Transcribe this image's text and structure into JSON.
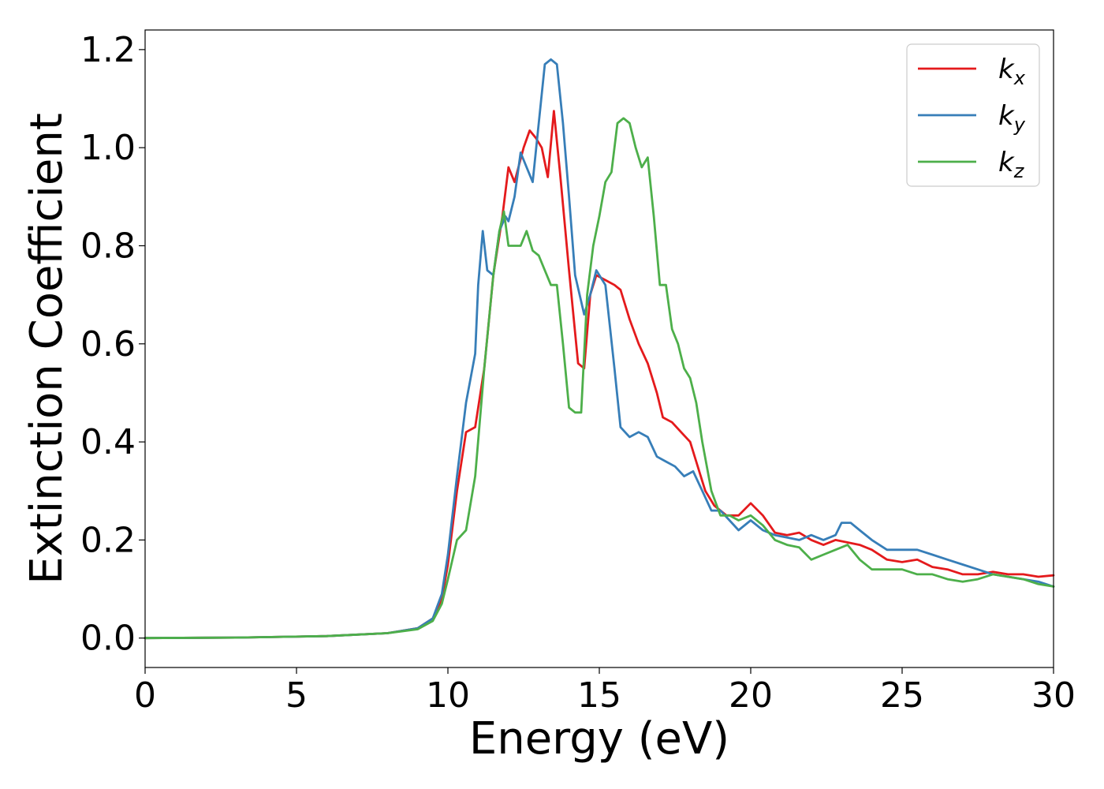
{
  "chart_data": {
    "type": "line",
    "title": "",
    "xlabel": "Energy (eV)",
    "ylabel": "Extinction Coefficient",
    "xlim": [
      0,
      30
    ],
    "ylim": [
      -0.06,
      1.24
    ],
    "xticks": [
      0,
      5,
      10,
      15,
      20,
      25,
      30
    ],
    "xtick_labels": [
      "0",
      "5",
      "10",
      "15",
      "20",
      "25",
      "30"
    ],
    "yticks": [
      0.0,
      0.2,
      0.4,
      0.6,
      0.8,
      1.0,
      1.2
    ],
    "ytick_labels": [
      "0.0",
      "0.2",
      "0.4",
      "0.6",
      "0.8",
      "1.0",
      "1.2"
    ],
    "grid": false,
    "legend_position": "top-right",
    "series": [
      {
        "name": "kx",
        "label_base": "k",
        "label_sub": "x",
        "color": "#e41a1c",
        "x": [
          0,
          3,
          6,
          8,
          9,
          9.5,
          9.8,
          10.0,
          10.3,
          10.6,
          10.9,
          11.2,
          11.5,
          11.8,
          12.0,
          12.2,
          12.5,
          12.7,
          12.9,
          13.1,
          13.3,
          13.5,
          13.7,
          14.0,
          14.3,
          14.5,
          14.7,
          14.9,
          15.2,
          15.5,
          15.7,
          16.0,
          16.3,
          16.6,
          16.9,
          17.1,
          17.4,
          17.7,
          18.0,
          18.2,
          18.5,
          18.8,
          19.2,
          19.6,
          20.0,
          20.4,
          20.8,
          21.2,
          21.6,
          22.0,
          22.4,
          22.8,
          23.2,
          23.6,
          24.0,
          24.5,
          25.0,
          25.5,
          26.0,
          26.5,
          27.0,
          27.5,
          28.0,
          28.5,
          29.0,
          29.5,
          30.0
        ],
        "y": [
          0.0,
          0.001,
          0.004,
          0.01,
          0.02,
          0.04,
          0.08,
          0.15,
          0.3,
          0.42,
          0.43,
          0.55,
          0.74,
          0.86,
          0.96,
          0.93,
          1.0,
          1.035,
          1.02,
          1.0,
          0.94,
          1.075,
          0.95,
          0.75,
          0.56,
          0.55,
          0.7,
          0.74,
          0.73,
          0.72,
          0.71,
          0.65,
          0.6,
          0.56,
          0.5,
          0.45,
          0.44,
          0.42,
          0.4,
          0.36,
          0.3,
          0.27,
          0.25,
          0.25,
          0.275,
          0.25,
          0.215,
          0.21,
          0.215,
          0.2,
          0.19,
          0.2,
          0.195,
          0.19,
          0.18,
          0.16,
          0.155,
          0.16,
          0.145,
          0.14,
          0.13,
          0.13,
          0.135,
          0.13,
          0.13,
          0.125,
          0.128
        ]
      },
      {
        "name": "ky",
        "label_base": "k",
        "label_sub": "y",
        "color": "#377eb8",
        "x": [
          0,
          3,
          6,
          8,
          9,
          9.5,
          9.8,
          10.0,
          10.3,
          10.6,
          10.9,
          11.0,
          11.15,
          11.3,
          11.5,
          11.7,
          11.9,
          12.0,
          12.2,
          12.4,
          12.6,
          12.8,
          13.0,
          13.2,
          13.4,
          13.6,
          13.8,
          14.0,
          14.2,
          14.5,
          14.7,
          14.9,
          15.2,
          15.5,
          15.7,
          16.0,
          16.3,
          16.6,
          16.9,
          17.2,
          17.5,
          17.8,
          18.1,
          18.4,
          18.7,
          19.0,
          19.3,
          19.6,
          20.0,
          20.4,
          20.8,
          21.2,
          21.6,
          22.0,
          22.4,
          22.8,
          23.0,
          23.3,
          23.6,
          24.0,
          24.5,
          25.0,
          25.5,
          26.0,
          26.5,
          27.0,
          27.5,
          28.0,
          28.5,
          29.0,
          29.5,
          30.0
        ],
        "y": [
          0.0,
          0.001,
          0.004,
          0.01,
          0.02,
          0.04,
          0.09,
          0.17,
          0.33,
          0.48,
          0.58,
          0.72,
          0.83,
          0.75,
          0.74,
          0.83,
          0.86,
          0.85,
          0.9,
          0.99,
          0.96,
          0.93,
          1.05,
          1.17,
          1.18,
          1.17,
          1.05,
          0.9,
          0.74,
          0.66,
          0.7,
          0.75,
          0.72,
          0.55,
          0.43,
          0.41,
          0.42,
          0.41,
          0.37,
          0.36,
          0.35,
          0.33,
          0.34,
          0.3,
          0.26,
          0.26,
          0.24,
          0.22,
          0.24,
          0.22,
          0.21,
          0.205,
          0.2,
          0.21,
          0.2,
          0.21,
          0.235,
          0.235,
          0.22,
          0.2,
          0.18,
          0.18,
          0.18,
          0.17,
          0.16,
          0.15,
          0.14,
          0.13,
          0.125,
          0.12,
          0.115,
          0.105
        ]
      },
      {
        "name": "kz",
        "label_base": "k",
        "label_sub": "z",
        "color": "#4daf4a",
        "x": [
          0,
          3,
          6,
          8,
          9,
          9.5,
          9.8,
          10.0,
          10.3,
          10.6,
          10.9,
          11.2,
          11.5,
          11.7,
          11.85,
          12.0,
          12.2,
          12.4,
          12.6,
          12.8,
          13.0,
          13.2,
          13.4,
          13.6,
          13.8,
          14.0,
          14.2,
          14.4,
          14.6,
          14.8,
          15.0,
          15.2,
          15.4,
          15.6,
          15.8,
          16.0,
          16.2,
          16.4,
          16.6,
          16.8,
          17.0,
          17.2,
          17.4,
          17.6,
          17.8,
          18.0,
          18.2,
          18.4,
          18.7,
          19.0,
          19.3,
          19.6,
          20.0,
          20.4,
          20.8,
          21.2,
          21.6,
          22.0,
          22.4,
          22.8,
          23.2,
          23.6,
          24.0,
          24.5,
          25.0,
          25.5,
          26.0,
          26.5,
          27.0,
          27.5,
          28.0,
          28.5,
          29.0,
          29.5,
          30.0
        ],
        "y": [
          0.0,
          0.001,
          0.004,
          0.01,
          0.018,
          0.035,
          0.07,
          0.12,
          0.2,
          0.22,
          0.33,
          0.55,
          0.74,
          0.83,
          0.87,
          0.8,
          0.8,
          0.8,
          0.83,
          0.79,
          0.78,
          0.75,
          0.72,
          0.72,
          0.6,
          0.47,
          0.46,
          0.46,
          0.7,
          0.8,
          0.86,
          0.93,
          0.95,
          1.05,
          1.06,
          1.05,
          1.0,
          0.96,
          0.98,
          0.86,
          0.72,
          0.72,
          0.63,
          0.6,
          0.55,
          0.53,
          0.48,
          0.4,
          0.3,
          0.25,
          0.25,
          0.24,
          0.25,
          0.23,
          0.2,
          0.19,
          0.185,
          0.16,
          0.17,
          0.18,
          0.19,
          0.16,
          0.14,
          0.14,
          0.14,
          0.13,
          0.13,
          0.12,
          0.115,
          0.12,
          0.13,
          0.125,
          0.12,
          0.11,
          0.105
        ]
      }
    ]
  }
}
